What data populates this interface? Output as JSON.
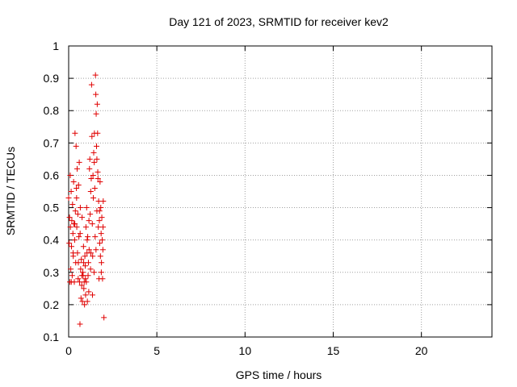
{
  "chart_data": {
    "type": "scatter",
    "title": "Day 121 of 2023, SRMTID for receiver kev2",
    "xlabel": "GPS time / hours",
    "ylabel": "SRMTID / TECUs",
    "xlim": [
      0,
      24
    ],
    "ylim": [
      0.1,
      1
    ],
    "xticks": [
      0,
      5,
      10,
      15,
      20
    ],
    "xtick_labels": [
      "0",
      "5",
      "10",
      "15",
      "20"
    ],
    "yticks": [
      0.1,
      0.2,
      0.3,
      0.4,
      0.5,
      0.6,
      0.7,
      0.8,
      0.9,
      1
    ],
    "ytick_labels": [
      "0.1",
      "0.2",
      "0.3",
      "0.4",
      "0.5",
      "0.6",
      "0.7",
      "0.8",
      "0.9",
      "1"
    ],
    "grid": true,
    "marker": "+",
    "color": "#e00000",
    "series": [
      {
        "name": "kev2",
        "points": [
          [
            0.0,
            0.53
          ],
          [
            0.03,
            0.39
          ],
          [
            0.05,
            0.47
          ],
          [
            0.07,
            0.27
          ],
          [
            0.09,
            0.6
          ],
          [
            0.1,
            0.44
          ],
          [
            0.12,
            0.31
          ],
          [
            0.14,
            0.55
          ],
          [
            0.16,
            0.38
          ],
          [
            0.18,
            0.46
          ],
          [
            0.2,
            0.29
          ],
          [
            0.22,
            0.51
          ],
          [
            0.24,
            0.42
          ],
          [
            0.26,
            0.35
          ],
          [
            0.28,
            0.58
          ],
          [
            0.3,
            0.45
          ],
          [
            0.32,
            0.27
          ],
          [
            0.34,
            0.4
          ],
          [
            0.36,
            0.73
          ],
          [
            0.38,
            0.49
          ],
          [
            0.4,
            0.33
          ],
          [
            0.42,
            0.69
          ],
          [
            0.44,
            0.56
          ],
          [
            0.46,
            0.44
          ],
          [
            0.48,
            0.62
          ],
          [
            0.5,
            0.36
          ],
          [
            0.52,
            0.48
          ],
          [
            0.54,
            0.28
          ],
          [
            0.56,
            0.57
          ],
          [
            0.58,
            0.41
          ],
          [
            0.6,
            0.64
          ],
          [
            0.62,
            0.27
          ],
          [
            0.64,
            0.14
          ],
          [
            0.66,
            0.5
          ],
          [
            0.68,
            0.31
          ],
          [
            0.7,
            0.22
          ],
          [
            0.72,
            0.34
          ],
          [
            0.74,
            0.26
          ],
          [
            0.76,
            0.47
          ],
          [
            0.78,
            0.21
          ],
          [
            0.8,
            0.3
          ],
          [
            0.82,
            0.29
          ],
          [
            0.84,
            0.38
          ],
          [
            0.86,
            0.25
          ],
          [
            0.88,
            0.27
          ],
          [
            0.9,
            0.2
          ],
          [
            0.92,
            0.35
          ],
          [
            0.94,
            0.32
          ],
          [
            0.96,
            0.23
          ],
          [
            0.98,
            0.44
          ],
          [
            1.0,
            0.27
          ],
          [
            1.02,
            0.5
          ],
          [
            1.04,
            0.36
          ],
          [
            1.06,
            0.21
          ],
          [
            1.08,
            0.41
          ],
          [
            1.1,
            0.29
          ],
          [
            1.12,
            0.33
          ],
          [
            1.14,
            0.24
          ],
          [
            1.16,
            0.37
          ],
          [
            1.18,
            0.62
          ],
          [
            1.2,
            0.65
          ],
          [
            1.22,
            0.48
          ],
          [
            1.24,
            0.31
          ],
          [
            1.26,
            0.36
          ],
          [
            1.28,
            0.59
          ],
          [
            1.3,
            0.88
          ],
          [
            1.32,
            0.72
          ],
          [
            1.34,
            0.45
          ],
          [
            1.36,
            0.35
          ],
          [
            1.38,
            0.6
          ],
          [
            1.4,
            0.53
          ],
          [
            1.42,
            0.67
          ],
          [
            1.44,
            0.3
          ],
          [
            1.46,
            0.73
          ],
          [
            1.48,
            0.56
          ],
          [
            1.5,
            0.41
          ],
          [
            1.52,
            0.91
          ],
          [
            1.54,
            0.85
          ],
          [
            1.56,
            0.79
          ],
          [
            1.58,
            0.69
          ],
          [
            1.6,
            0.49
          ],
          [
            1.62,
            0.82
          ],
          [
            1.64,
            0.73
          ],
          [
            1.66,
            0.59
          ],
          [
            1.68,
            0.44
          ],
          [
            1.7,
            0.52
          ],
          [
            1.72,
            0.28
          ],
          [
            1.74,
            0.46
          ],
          [
            1.76,
            0.39
          ],
          [
            1.78,
            0.58
          ],
          [
            1.8,
            0.35
          ],
          [
            1.82,
            0.5
          ],
          [
            1.84,
            0.42
          ],
          [
            1.86,
            0.33
          ],
          [
            1.88,
            0.47
          ],
          [
            1.9,
            0.4
          ],
          [
            1.92,
            0.28
          ],
          [
            1.94,
            0.37
          ],
          [
            1.96,
            0.52
          ],
          [
            2.0,
            0.16
          ],
          [
            0.25,
            0.36
          ],
          [
            0.45,
            0.53
          ],
          [
            0.65,
            0.42
          ],
          [
            0.85,
            0.33
          ],
          [
            1.05,
            0.4
          ],
          [
            1.25,
            0.55
          ],
          [
            1.45,
            0.64
          ],
          [
            1.65,
            0.61
          ],
          [
            1.85,
            0.3
          ],
          [
            0.15,
            0.27
          ],
          [
            0.35,
            0.45
          ],
          [
            0.55,
            0.33
          ],
          [
            0.75,
            0.29
          ],
          [
            0.95,
            0.28
          ],
          [
            1.15,
            0.46
          ],
          [
            1.35,
            0.23
          ],
          [
            1.55,
            0.37
          ],
          [
            1.75,
            0.49
          ],
          [
            1.95,
            0.44
          ],
          [
            1.6,
            0.65
          ]
        ]
      }
    ]
  }
}
